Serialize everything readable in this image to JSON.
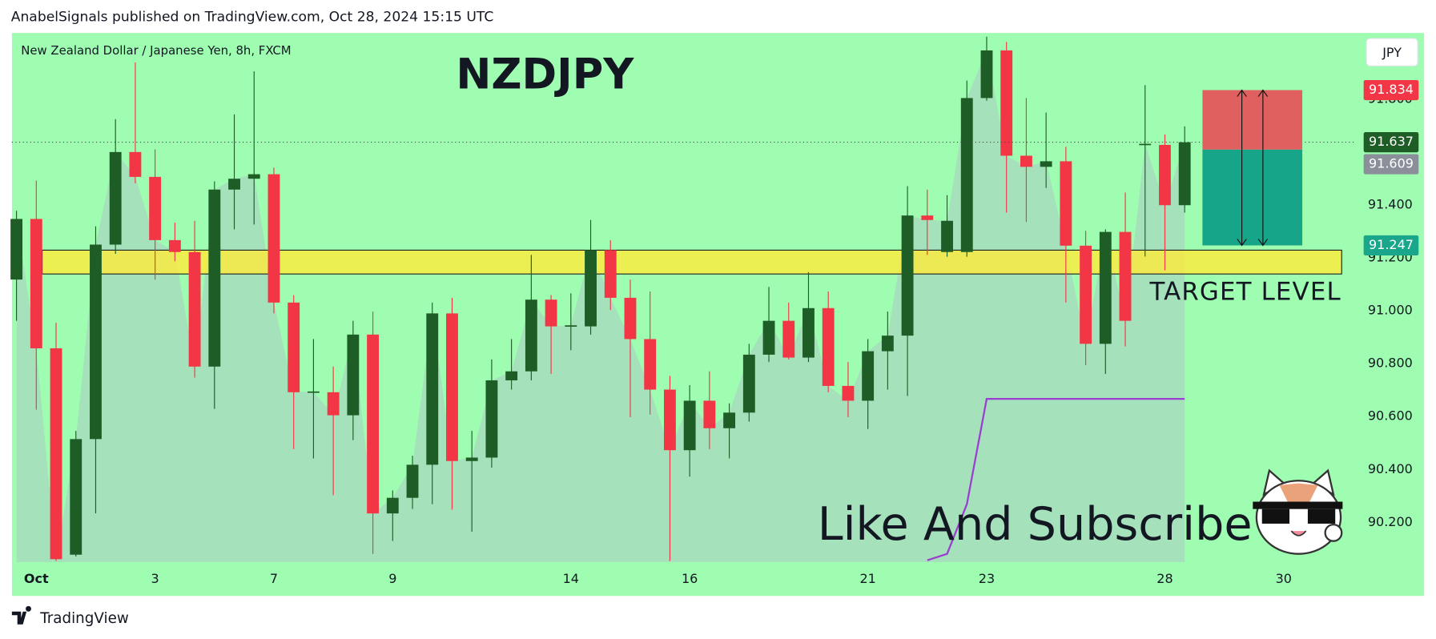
{
  "header": "AnabelSignals published on TradingView.com, Oct 28, 2024 15:15 UTC",
  "footer": "TradingView",
  "overlay_text": "Like And Subscribe",
  "chart_data": {
    "type": "candlestick",
    "title": "NZDJPY",
    "subtitle": "New Zealand Dollar / Japanese Yen, 8h, FXCM",
    "currency": "JPY",
    "categories": [
      null,
      "Oct",
      null,
      null,
      null,
      null,
      null,
      "3",
      null,
      null,
      null,
      null,
      null,
      "7",
      null,
      null,
      null,
      null,
      null,
      "9",
      null,
      null,
      null,
      null,
      null,
      null,
      null,
      null,
      "14",
      null,
      null,
      null,
      null,
      null,
      "16",
      null,
      null,
      null,
      null,
      null,
      null,
      null,
      null,
      "21",
      null,
      null,
      null,
      null,
      null,
      "23",
      null,
      null,
      null,
      null,
      null,
      null,
      null,
      null,
      "28",
      null,
      null,
      null,
      null,
      null,
      "30"
    ],
    "open": [
      91.118,
      91.347,
      90.858,
      90.078,
      90.515,
      91.25,
      91.6,
      91.506,
      91.267,
      91.222,
      90.789,
      91.458,
      91.499,
      91.516,
      91.031,
      90.692,
      90.692,
      90.605,
      90.91,
      90.234,
      90.293,
      90.418,
      90.99,
      90.432,
      90.445,
      90.737,
      90.771,
      91.042,
      90.941,
      90.941,
      91.229,
      91.049,
      90.893,
      90.702,
      90.473,
      90.66,
      90.556,
      90.615,
      90.834,
      90.962,
      90.823,
      91.01,
      90.716,
      90.66,
      90.847,
      90.906,
      91.36,
      91.222,
      91.222,
      91.804,
      91.984,
      91.586,
      91.544,
      91.565,
      91.246,
      90.875,
      91.298,
      91.627,
      91.627,
      91.399,
      null,
      null,
      null,
      null,
      null
    ],
    "high": [
      91.378,
      91.492,
      90.955,
      90.546,
      91.319,
      91.724,
      91.939,
      91.61,
      91.333,
      91.34,
      91.489,
      91.742,
      91.905,
      91.541,
      91.059,
      90.893,
      90.789,
      90.962,
      90.997,
      90.321,
      90.452,
      91.031,
      91.049,
      90.546,
      90.816,
      90.893,
      91.211,
      91.059,
      91.066,
      91.343,
      91.267,
      91.118,
      91.073,
      90.754,
      90.719,
      90.771,
      90.65,
      90.875,
      91.09,
      91.031,
      91.146,
      91.073,
      90.806,
      90.893,
      90.997,
      91.471,
      91.458,
      91.437,
      91.87,
      92.036,
      92.016,
      91.804,
      91.749,
      91.62,
      91.302,
      91.308,
      91.447,
      91.853,
      91.666,
      91.697,
      null,
      null,
      null,
      null,
      null
    ],
    "low": [
      90.962,
      90.626,
      90.054,
      90.071,
      90.234,
      91.215,
      91.482,
      91.118,
      91.187,
      90.747,
      90.629,
      91.308,
      91.326,
      90.99,
      90.477,
      90.442,
      90.303,
      90.511,
      90.081,
      90.13,
      90.251,
      90.269,
      90.248,
      90.165,
      90.407,
      90.702,
      90.737,
      90.761,
      90.851,
      90.91,
      91.003,
      90.598,
      90.608,
      90.054,
      90.373,
      90.477,
      90.442,
      90.581,
      90.806,
      90.816,
      90.806,
      90.692,
      90.598,
      90.553,
      90.702,
      90.678,
      91.211,
      91.204,
      91.204,
      91.794,
      91.371,
      91.336,
      91.464,
      91.031,
      90.795,
      90.761,
      90.865,
      91.205,
      91.153,
      91.371,
      null,
      null,
      null,
      null,
      null
    ],
    "close": [
      91.347,
      90.858,
      90.061,
      90.515,
      91.25,
      91.6,
      91.506,
      91.267,
      91.222,
      90.789,
      91.458,
      91.499,
      91.516,
      91.031,
      90.692,
      90.695,
      90.605,
      90.91,
      90.234,
      90.293,
      90.418,
      90.99,
      90.432,
      90.445,
      90.737,
      90.771,
      91.042,
      90.941,
      90.945,
      91.229,
      91.049,
      90.893,
      90.702,
      90.473,
      90.66,
      90.556,
      90.615,
      90.834,
      90.962,
      90.823,
      91.01,
      90.716,
      90.66,
      90.847,
      90.906,
      91.36,
      91.343,
      91.34,
      91.804,
      91.984,
      91.586,
      91.544,
      91.565,
      91.246,
      90.875,
      91.298,
      90.962,
      91.631,
      91.399,
      91.637,
      null,
      null,
      null,
      null,
      null
    ],
    "up_color": "#1e5e26",
    "down_color": "#f23645",
    "ylim": [
      90.05,
      92.05
    ],
    "yticks": [
      {
        "value": 90.2,
        "label": "90.200"
      },
      {
        "value": 90.4,
        "label": "90.400"
      },
      {
        "value": 90.6,
        "label": "90.600"
      },
      {
        "value": 90.8,
        "label": "90.800"
      },
      {
        "value": 91.0,
        "label": "91.000"
      },
      {
        "value": 91.2,
        "label": "91.200"
      },
      {
        "value": 91.4,
        "label": "91.400"
      },
      {
        "value": 91.8,
        "label": "91.800"
      }
    ],
    "zone": {
      "low": 91.139,
      "high": 91.229,
      "label": "TARGET LEVEL",
      "color": "#ffeb3b"
    },
    "position": {
      "stop": 91.834,
      "entry": 91.609,
      "target": 91.247,
      "stop_color": "#f23645",
      "entry_color": "#8a8f9a",
      "target_color": "#1aa68a"
    },
    "indicator": {
      "color": "#9c3fd1",
      "values": [
        null,
        null,
        null,
        null,
        null,
        null,
        null,
        null,
        null,
        null,
        null,
        null,
        null,
        null,
        null,
        null,
        null,
        null,
        null,
        null,
        null,
        null,
        null,
        null,
        null,
        null,
        null,
        null,
        null,
        null,
        null,
        null,
        null,
        null,
        null,
        null,
        null,
        null,
        null,
        null,
        null,
        null,
        null,
        null,
        null,
        null,
        90.057,
        90.081,
        90.269,
        90.667,
        90.667,
        90.667,
        90.667,
        90.667,
        90.667,
        90.667,
        90.667,
        90.667,
        90.667,
        90.667,
        null,
        null,
        null,
        null,
        null
      ]
    }
  }
}
